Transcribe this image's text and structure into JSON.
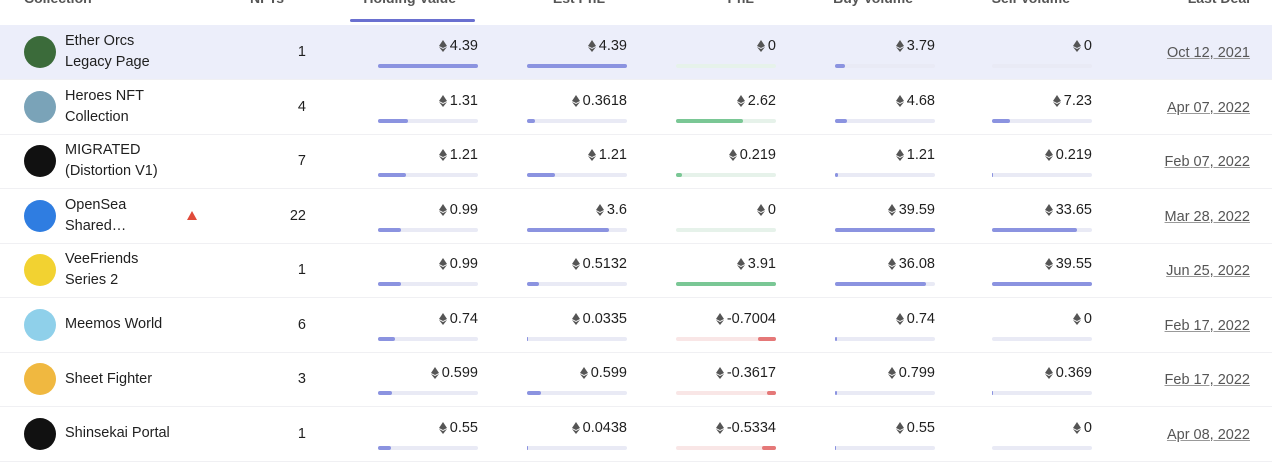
{
  "table": {
    "columns": [
      "Collection",
      "NFTs",
      "Holding Value",
      "Est PnL",
      "PnL",
      "Buy Volume",
      "Sell Volume",
      "Last Deal"
    ],
    "rows": [
      [
        "Ether Orcs Legacy Page",
        1,
        4.39,
        4.39,
        0,
        3.79,
        0,
        "Oct 12, 2021"
      ],
      [
        "Heroes NFT Collection",
        4,
        1.31,
        0.3618,
        2.62,
        4.68,
        7.23,
        "Apr 07, 2022"
      ],
      [
        "MIGRATED (Distortion V1)",
        7,
        1.21,
        1.21,
        0.219,
        1.21,
        0.219,
        "Feb 07, 2022"
      ],
      [
        "OpenSea Shared…",
        22,
        0.99,
        3.6,
        0,
        39.59,
        33.65,
        "Mar 28, 2022"
      ],
      [
        "VeeFriends Series 2",
        1,
        0.99,
        0.5132,
        3.91,
        36.08,
        39.55,
        "Jun 25, 2022"
      ],
      [
        "Meemos World",
        6,
        0.74,
        0.0335,
        -0.7004,
        0.74,
        0,
        "Feb 17, 2022"
      ],
      [
        "Sheet Fighter",
        3,
        0.599,
        0.599,
        -0.3617,
        0.799,
        0.369,
        "Feb 17, 2022"
      ],
      [
        "Shinsekai Portal",
        1,
        0.55,
        0.0438,
        -0.5334,
        0.55,
        0,
        "Apr 08, 2022"
      ]
    ]
  }
}
